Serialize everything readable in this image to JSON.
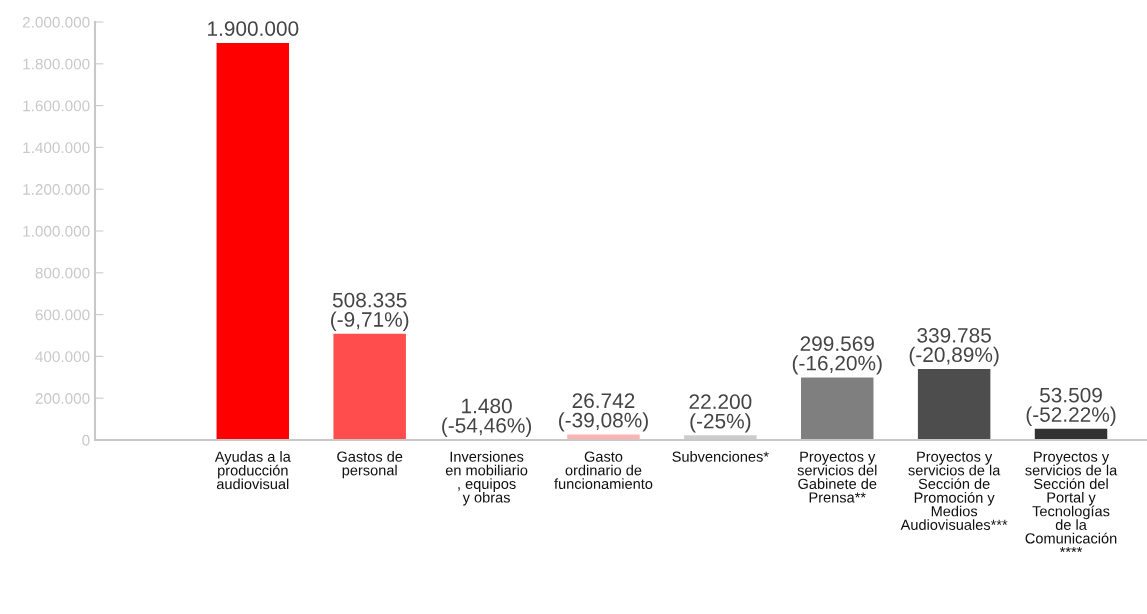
{
  "chart_data": {
    "type": "bar",
    "categories": [
      "Ayudas a la\nproducción\naudiovisual",
      "Gastos de\npersonal",
      "Inversiones\nen mobiliario\n, equipos\ny obras",
      "Gasto\nordinario de\nfuncionamiento",
      "Subvenciones*",
      "Proyectos y\nservicios del\nGabinete de\nPrensa**",
      "Proyectos y\nservicios de la\nSección de\nPromoción y\nMedios\nAudiovisuales***",
      "Proyectos y\nservicios de la\nSección del\nPortal y\nTecnologías\nde la\nComunicación\n****"
    ],
    "values": [
      1900000,
      508335,
      1480,
      26742,
      22200,
      299569,
      339785,
      53509
    ],
    "colors": [
      "#ff0000",
      "#ff4d4d",
      "#ff4d4d",
      "#ffb3b3",
      "#cccccc",
      "#7f7f7f",
      "#4d4d4d",
      "#333333"
    ],
    "value_labels": [
      "1.900.000",
      "508.335\n(-9,71%)",
      "1.480\n(-54,46%)",
      "26.742\n(-39,08%)",
      "22.200\n(-25%)",
      "299.569\n(-16,20%)",
      "339.785\n(-20,89%)",
      "53.509\n(-52.22%)"
    ],
    "ylim": [
      0,
      2000000
    ],
    "yticks": [
      {
        "value": 0,
        "label": "0"
      },
      {
        "value": 200000,
        "label": "200.000"
      },
      {
        "value": 400000,
        "label": "400.000"
      },
      {
        "value": 600000,
        "label": "600.000"
      },
      {
        "value": 800000,
        "label": "800.000"
      },
      {
        "value": 1000000,
        "label": "1.000.000"
      },
      {
        "value": 1200000,
        "label": "1.200.000"
      },
      {
        "value": 1400000,
        "label": "1.400.000"
      },
      {
        "value": 1600000,
        "label": "1.600.000"
      },
      {
        "value": 1800000,
        "label": "1.800.000"
      },
      {
        "value": 2000000,
        "label": "2.000.000"
      }
    ],
    "grid": false,
    "legend": false
  }
}
